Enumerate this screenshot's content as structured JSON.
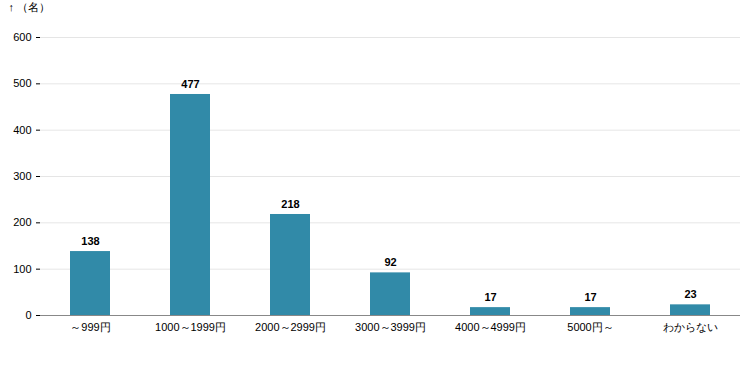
{
  "chart_data": {
    "type": "bar",
    "y_label": "（名）",
    "categories": [
      "～999円",
      "1000～1999円",
      "2000～2999円",
      "3000～3999円",
      "4000～4999円",
      "5000円～",
      "わからない"
    ],
    "values": [
      138,
      477,
      218,
      92,
      17,
      17,
      23
    ],
    "color": "#318aa8",
    "ylim": [
      0,
      600
    ],
    "yticks": [
      0,
      100,
      200,
      300,
      400,
      500,
      600
    ],
    "grid": true,
    "data_labels": true
  }
}
